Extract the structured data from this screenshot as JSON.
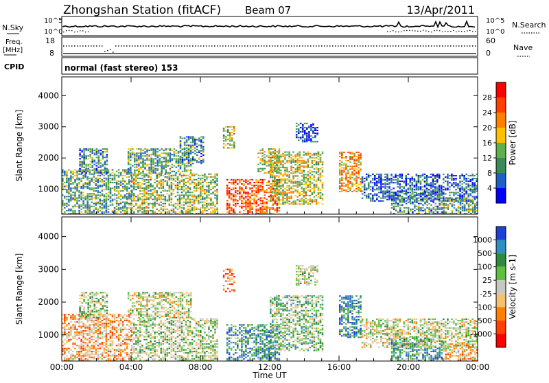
{
  "header": {
    "title": "Zhongshan Station (fitACF)",
    "beam": "Beam 07",
    "date": "13/Apr/2011"
  },
  "top_panels": {
    "nsky_label": "N.Sky",
    "nsearch_label": "N.Search",
    "count_ticks_left": [
      "10^5",
      "10^0"
    ],
    "count_ticks_right": [
      "10^5",
      "10^0"
    ],
    "freq_label_top": "Freq.",
    "freq_label_unit": "[MHz]",
    "freq_ticks": [
      "18",
      "8"
    ],
    "nave_label": "Nave",
    "nave_ticks": [
      "60",
      "0"
    ],
    "cpid_label": "CPID",
    "cpid_text": "normal (fast stereo) 153"
  },
  "chart_data": [
    {
      "type": "heatmap",
      "name": "power-panel",
      "xlabel": "Time UT",
      "ylabel": "Slant Range [km]",
      "x_ticks": [
        "00:00",
        "04:00",
        "08:00",
        "12:00",
        "16:00",
        "20:00",
        "00:00"
      ],
      "x_tick_hours": [
        0,
        4,
        8,
        12,
        16,
        20,
        24
      ],
      "xlim_hours": [
        0,
        24
      ],
      "y_ticks": [
        1000,
        2000,
        3000,
        4000
      ],
      "ylim": [
        200,
        4600
      ],
      "colorbar": {
        "label": "Power [dB]",
        "ticks": [
          "4",
          "8",
          "12",
          "16",
          "20",
          "24",
          "28"
        ],
        "colors": [
          "#0000ff",
          "#1f5fc8",
          "#3a8a5a",
          "#5fb04a",
          "#ffc000",
          "#ff8000",
          "#ff4000",
          "#ff0000"
        ]
      },
      "echo_regions": [
        {
          "t0": 0.0,
          "t1": 4.0,
          "r0": 200,
          "r1": 1600,
          "level": 0.35
        },
        {
          "t0": 1.0,
          "t1": 2.6,
          "r0": 1500,
          "r1": 2300,
          "level": 0.3
        },
        {
          "t0": 3.8,
          "t1": 7.5,
          "r0": 1500,
          "r1": 2300,
          "level": 0.35
        },
        {
          "t0": 4.0,
          "t1": 9.0,
          "r0": 200,
          "r1": 1500,
          "level": 0.45
        },
        {
          "t0": 6.8,
          "t1": 8.2,
          "r0": 1800,
          "r1": 2700,
          "level": 0.3
        },
        {
          "t0": 9.3,
          "t1": 10.0,
          "r0": 2300,
          "r1": 3000,
          "level": 0.45
        },
        {
          "t0": 9.5,
          "t1": 12.5,
          "r0": 200,
          "r1": 1300,
          "level": 0.8
        },
        {
          "t0": 11.3,
          "t1": 12.5,
          "r0": 1500,
          "r1": 2300,
          "level": 0.5
        },
        {
          "t0": 12.0,
          "t1": 15.0,
          "r0": 500,
          "r1": 2200,
          "level": 0.5
        },
        {
          "t0": 13.5,
          "t1": 14.8,
          "r0": 2500,
          "r1": 3100,
          "level": 0.15
        },
        {
          "t0": 16.0,
          "t1": 17.3,
          "r0": 900,
          "r1": 2200,
          "level": 0.65
        },
        {
          "t0": 17.3,
          "t1": 24.0,
          "r0": 600,
          "r1": 1500,
          "level": 0.2
        },
        {
          "t0": 19.0,
          "t1": 22.0,
          "r0": 200,
          "r1": 900,
          "level": 0.3
        },
        {
          "t0": 22.0,
          "t1": 24.0,
          "r0": 200,
          "r1": 700,
          "level": 0.35
        }
      ]
    },
    {
      "type": "heatmap",
      "name": "velocity-panel",
      "xlabel": "Time UT",
      "ylabel": "Slant Range [km]",
      "x_ticks": [
        "00:00",
        "04:00",
        "08:00",
        "12:00",
        "16:00",
        "20:00",
        "00:00"
      ],
      "x_tick_hours": [
        0,
        4,
        8,
        12,
        16,
        20,
        24
      ],
      "xlim_hours": [
        0,
        24
      ],
      "y_ticks": [
        1000,
        2000,
        3000,
        4000
      ],
      "ylim": [
        200,
        4600
      ],
      "colorbar": {
        "label": "Velocity [m s-1]",
        "ticks": [
          "1000",
          "500",
          "100",
          "25",
          "-25",
          "-100",
          "-500",
          "-1000"
        ],
        "colors": [
          "#1f3fd8",
          "#2f8fc0",
          "#2e8a3e",
          "#5fc040",
          "#c8c8c0",
          "#f5c070",
          "#ff8000",
          "#ff4000",
          "#ff0000"
        ]
      },
      "echo_regions": [
        {
          "t0": 0.0,
          "t1": 4.0,
          "r0": 200,
          "r1": 1600,
          "level": 0.35
        },
        {
          "t0": 1.0,
          "t1": 2.6,
          "r0": 1500,
          "r1": 2300,
          "level": 0.55
        },
        {
          "t0": 3.8,
          "t1": 7.5,
          "r0": 1500,
          "r1": 2300,
          "level": 0.5
        },
        {
          "t0": 4.0,
          "t1": 9.0,
          "r0": 200,
          "r1": 1500,
          "level": 0.55
        },
        {
          "t0": 9.3,
          "t1": 10.0,
          "r0": 2300,
          "r1": 3000,
          "level": 0.3
        },
        {
          "t0": 9.5,
          "t1": 12.5,
          "r0": 200,
          "r1": 1300,
          "level": 0.75
        },
        {
          "t0": 12.0,
          "t1": 15.0,
          "r0": 500,
          "r1": 2200,
          "level": 0.6
        },
        {
          "t0": 13.5,
          "t1": 14.8,
          "r0": 2500,
          "r1": 3100,
          "level": 0.5
        },
        {
          "t0": 16.0,
          "t1": 17.3,
          "r0": 900,
          "r1": 2200,
          "level": 0.8
        },
        {
          "t0": 17.3,
          "t1": 24.0,
          "r0": 600,
          "r1": 1500,
          "level": 0.5
        },
        {
          "t0": 19.0,
          "t1": 22.0,
          "r0": 200,
          "r1": 900,
          "level": 0.7
        },
        {
          "t0": 22.0,
          "t1": 24.0,
          "r0": 200,
          "r1": 700,
          "level": 0.4
        }
      ]
    }
  ]
}
